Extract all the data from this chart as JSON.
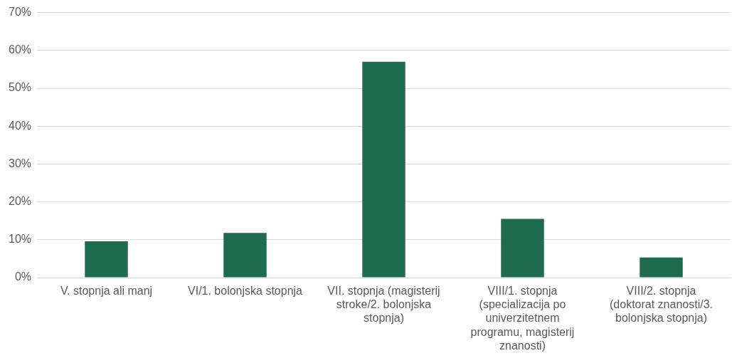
{
  "chart_data": {
    "type": "bar",
    "categories": [
      "V. stopnja ali manj",
      "VI/1. bolonjska stopnja",
      "VII. stopnja (magisterij stroke/2. bolonjska stopnja)",
      "VIII/1. stopnja (specializacija po univerzitetnem programu, magisterij znanosti)",
      "VIII/2. stopnja (doktorat znanosti/3. bolonjska stopnja)"
    ],
    "values": [
      9.6,
      11.8,
      57,
      15.5,
      5.3
    ],
    "color": "#1e6b50",
    "ylim": [
      0,
      70
    ],
    "yticks": [
      {
        "value": 0,
        "label": "0%"
      },
      {
        "value": 10,
        "label": "10%"
      },
      {
        "value": 20,
        "label": "20%"
      },
      {
        "value": 30,
        "label": "30%"
      },
      {
        "value": 40,
        "label": "40%"
      },
      {
        "value": 50,
        "label": "50%"
      },
      {
        "value": 60,
        "label": "60%"
      },
      {
        "value": 70,
        "label": "70%"
      }
    ],
    "grid": "y",
    "legend": false
  }
}
